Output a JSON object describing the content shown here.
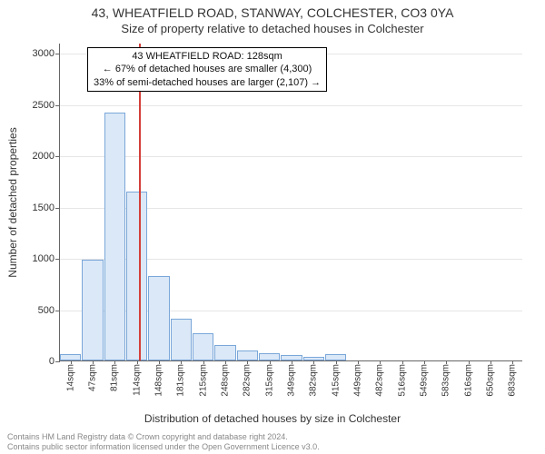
{
  "title_line1": "43, WHEATFIELD ROAD, STANWAY, COLCHESTER, CO3 0YA",
  "title_line2": "Size of property relative to detached houses in Colchester",
  "ylabel": "Number of detached properties",
  "xlabel": "Distribution of detached houses by size in Colchester",
  "chart": {
    "type": "histogram",
    "background_color": "#ffffff",
    "grid_color": "#e6e6e6",
    "bar_fill": "#dbe8f7",
    "bar_stroke": "#7aa7d9",
    "axis_color": "#666666",
    "marker_line_color": "#d43f3a",
    "ylim": [
      0,
      3100
    ],
    "yticks": [
      0,
      500,
      1000,
      1500,
      2000,
      2500,
      3000
    ],
    "xtick_labels": [
      "14sqm",
      "47sqm",
      "81sqm",
      "114sqm",
      "148sqm",
      "181sqm",
      "215sqm",
      "248sqm",
      "282sqm",
      "315sqm",
      "349sqm",
      "382sqm",
      "415sqm",
      "449sqm",
      "482sqm",
      "516sqm",
      "549sqm",
      "583sqm",
      "616sqm",
      "650sqm",
      "683sqm"
    ],
    "values": [
      60,
      980,
      2420,
      1650,
      820,
      410,
      270,
      150,
      100,
      70,
      50,
      35,
      60,
      0,
      0,
      0,
      0,
      0,
      0,
      0,
      0
    ],
    "marker_value_x": 128,
    "x_range": [
      14,
      683
    ],
    "label_fontsize": 12,
    "tick_fontsize": 11,
    "xtick_fontsize": 10,
    "title_fontsize": 14
  },
  "annotation": {
    "line1": "43 WHEATFIELD ROAD: 128sqm",
    "line2": "← 67% of detached houses are smaller (4,300)",
    "line3": "33% of semi-detached houses are larger (2,107) →",
    "border_color": "#000000",
    "bg_color": "#ffffff"
  },
  "footer": {
    "line1": "Contains HM Land Registry data © Crown copyright and database right 2024.",
    "line2": "Contains public sector information licensed under the Open Government Licence v3.0.",
    "color": "#888888"
  }
}
